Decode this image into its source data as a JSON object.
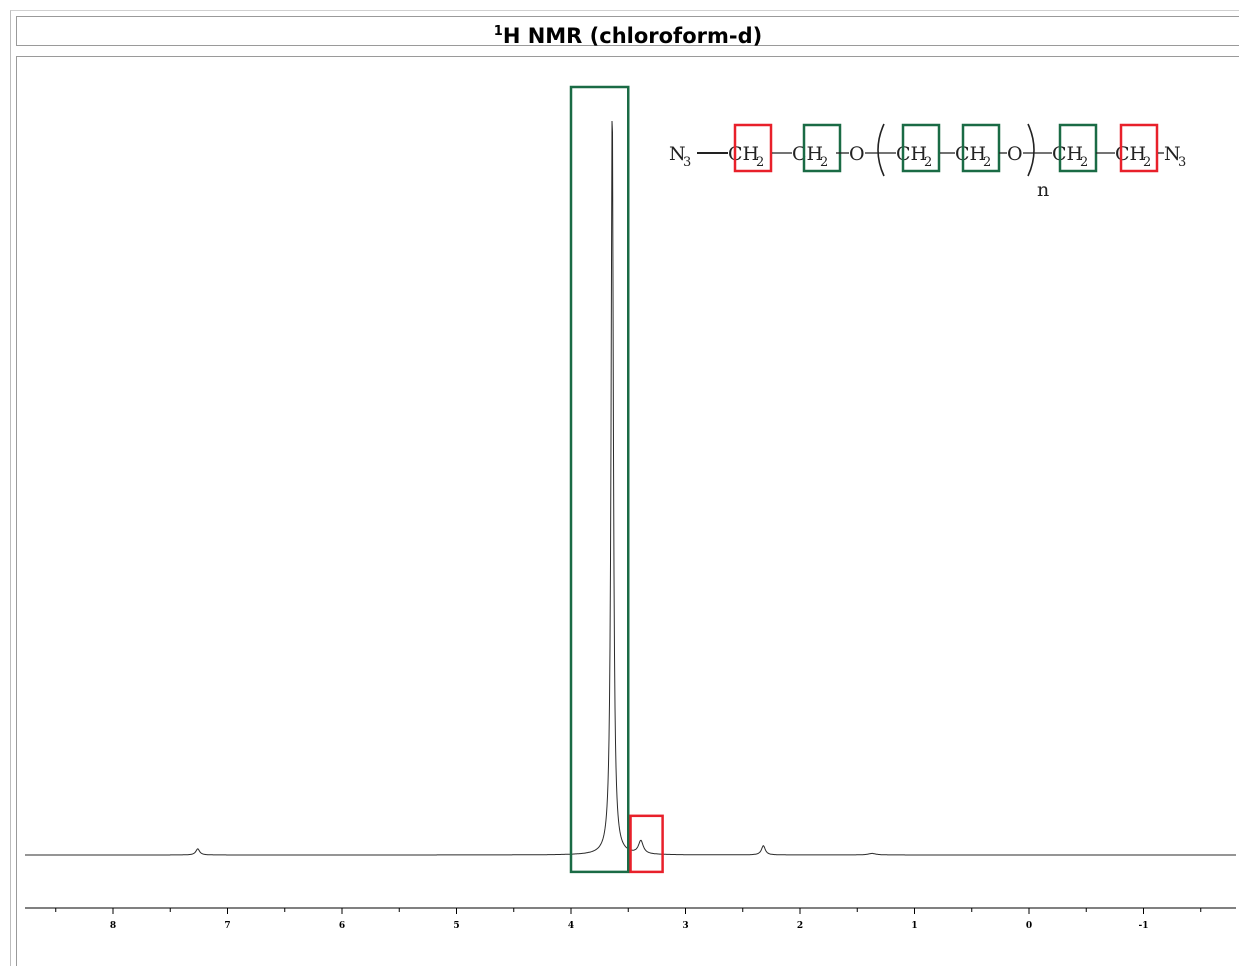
{
  "title": {
    "sup": "1",
    "text": "H NMR (chloroform-d)"
  },
  "colors": {
    "green_box": "#1a6b45",
    "red_box": "#e8202a",
    "trace": "#2b2b2b"
  },
  "chart_data": {
    "type": "line",
    "title": "1H NMR (chloroform-d)",
    "xlabel": "",
    "ylabel": "",
    "x_reversed": true,
    "xlim": [
      8.75,
      -1.75
    ],
    "ylim": [
      -0.06,
      1.0
    ],
    "grid": false,
    "tick_labels": [
      "8",
      "7",
      "6",
      "5",
      "4",
      "3",
      "2",
      "1",
      "0",
      "-1"
    ],
    "peaks": [
      {
        "ppm": 7.26,
        "intensity": 0.008,
        "width": 0.02
      },
      {
        "ppm": 3.64,
        "intensity": 0.98,
        "width": 0.012
      },
      {
        "ppm": 3.39,
        "intensity": 0.017,
        "width": 0.025
      },
      {
        "ppm": 2.32,
        "intensity": 0.012,
        "width": 0.02
      },
      {
        "ppm": 1.37,
        "intensity": 0.002,
        "width": 0.04
      }
    ],
    "highlight_regions": [
      {
        "label": "green",
        "ppm_from": 4.0,
        "ppm_to": 3.5,
        "top": 1.0,
        "bottom": -0.022
      },
      {
        "label": "red",
        "ppm_from": 3.48,
        "ppm_to": 3.2,
        "top": 0.051,
        "bottom": -0.022
      }
    ]
  },
  "structure": {
    "n3_left": "N",
    "n3_left_sub": "3",
    "ch": "CH",
    "ch_sub": "2",
    "o": "O",
    "repeat": "n",
    "n3_right": "N",
    "n3_right_sub": "3"
  }
}
